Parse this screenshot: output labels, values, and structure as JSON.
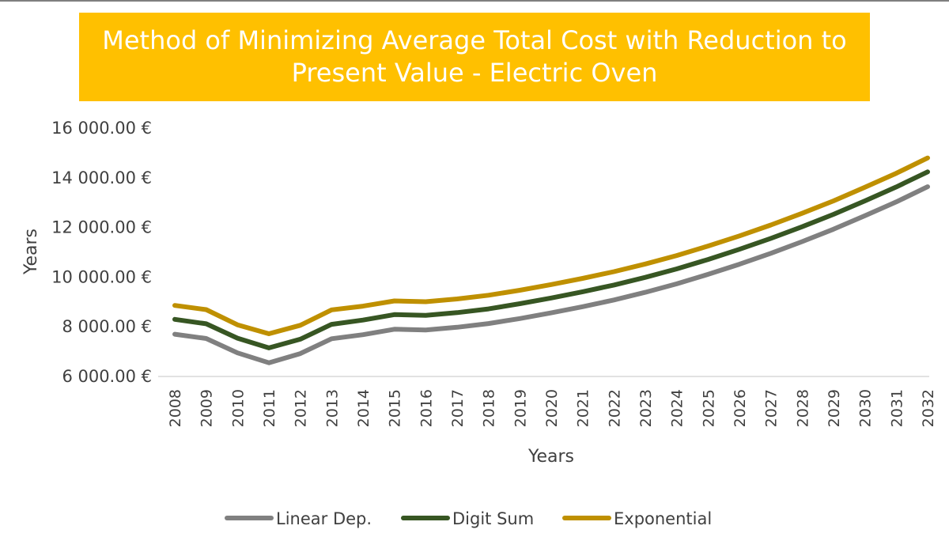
{
  "chart_data": {
    "type": "line",
    "title": "Method of Minimizing Average Total Cost with Reduction to Present Value - Electric Oven",
    "xlabel": "Years",
    "ylabel": "Years",
    "ylim": [
      6000,
      16000
    ],
    "yticks": [
      {
        "value": 6000,
        "label": "6 000.00 €"
      },
      {
        "value": 8000,
        "label": "8 000.00 €"
      },
      {
        "value": 10000,
        "label": "10 000.00 €"
      },
      {
        "value": 12000,
        "label": "12 000.00 €"
      },
      {
        "value": 14000,
        "label": "14 000.00 €"
      },
      {
        "value": 16000,
        "label": "16 000.00 €"
      }
    ],
    "categories": [
      "2008",
      "2009",
      "2010",
      "2011",
      "2012",
      "2013",
      "2014",
      "2015",
      "2016",
      "2017",
      "2018",
      "2019",
      "2020",
      "2021",
      "2022",
      "2023",
      "2024",
      "2025",
      "2026",
      "2027",
      "2028",
      "2029",
      "2030",
      "2031",
      "2032"
    ],
    "grid": false,
    "legend": "bottom",
    "series": [
      {
        "name": "Linear Dep.",
        "color": "#808080",
        "values": [
          7700,
          7530,
          6950,
          6550,
          6920,
          7520,
          7680,
          7900,
          7870,
          7980,
          8130,
          8330,
          8560,
          8810,
          9080,
          9390,
          9730,
          10110,
          10520,
          10960,
          11430,
          11930,
          12470,
          13030,
          13640
        ]
      },
      {
        "name": "Digit Sum",
        "color": "#375623",
        "values": [
          8300,
          8120,
          7540,
          7150,
          7500,
          8100,
          8270,
          8490,
          8460,
          8570,
          8720,
          8930,
          9160,
          9410,
          9680,
          9990,
          10330,
          10710,
          11120,
          11560,
          12030,
          12530,
          13070,
          13630,
          14240
        ]
      },
      {
        "name": "Exponential",
        "color": "#bf9000",
        "values": [
          8860,
          8690,
          8080,
          7720,
          8060,
          8680,
          8830,
          9040,
          9010,
          9120,
          9270,
          9470,
          9700,
          9950,
          10220,
          10530,
          10870,
          11250,
          11660,
          12100,
          12570,
          13070,
          13620,
          14180,
          14800
        ]
      }
    ]
  }
}
